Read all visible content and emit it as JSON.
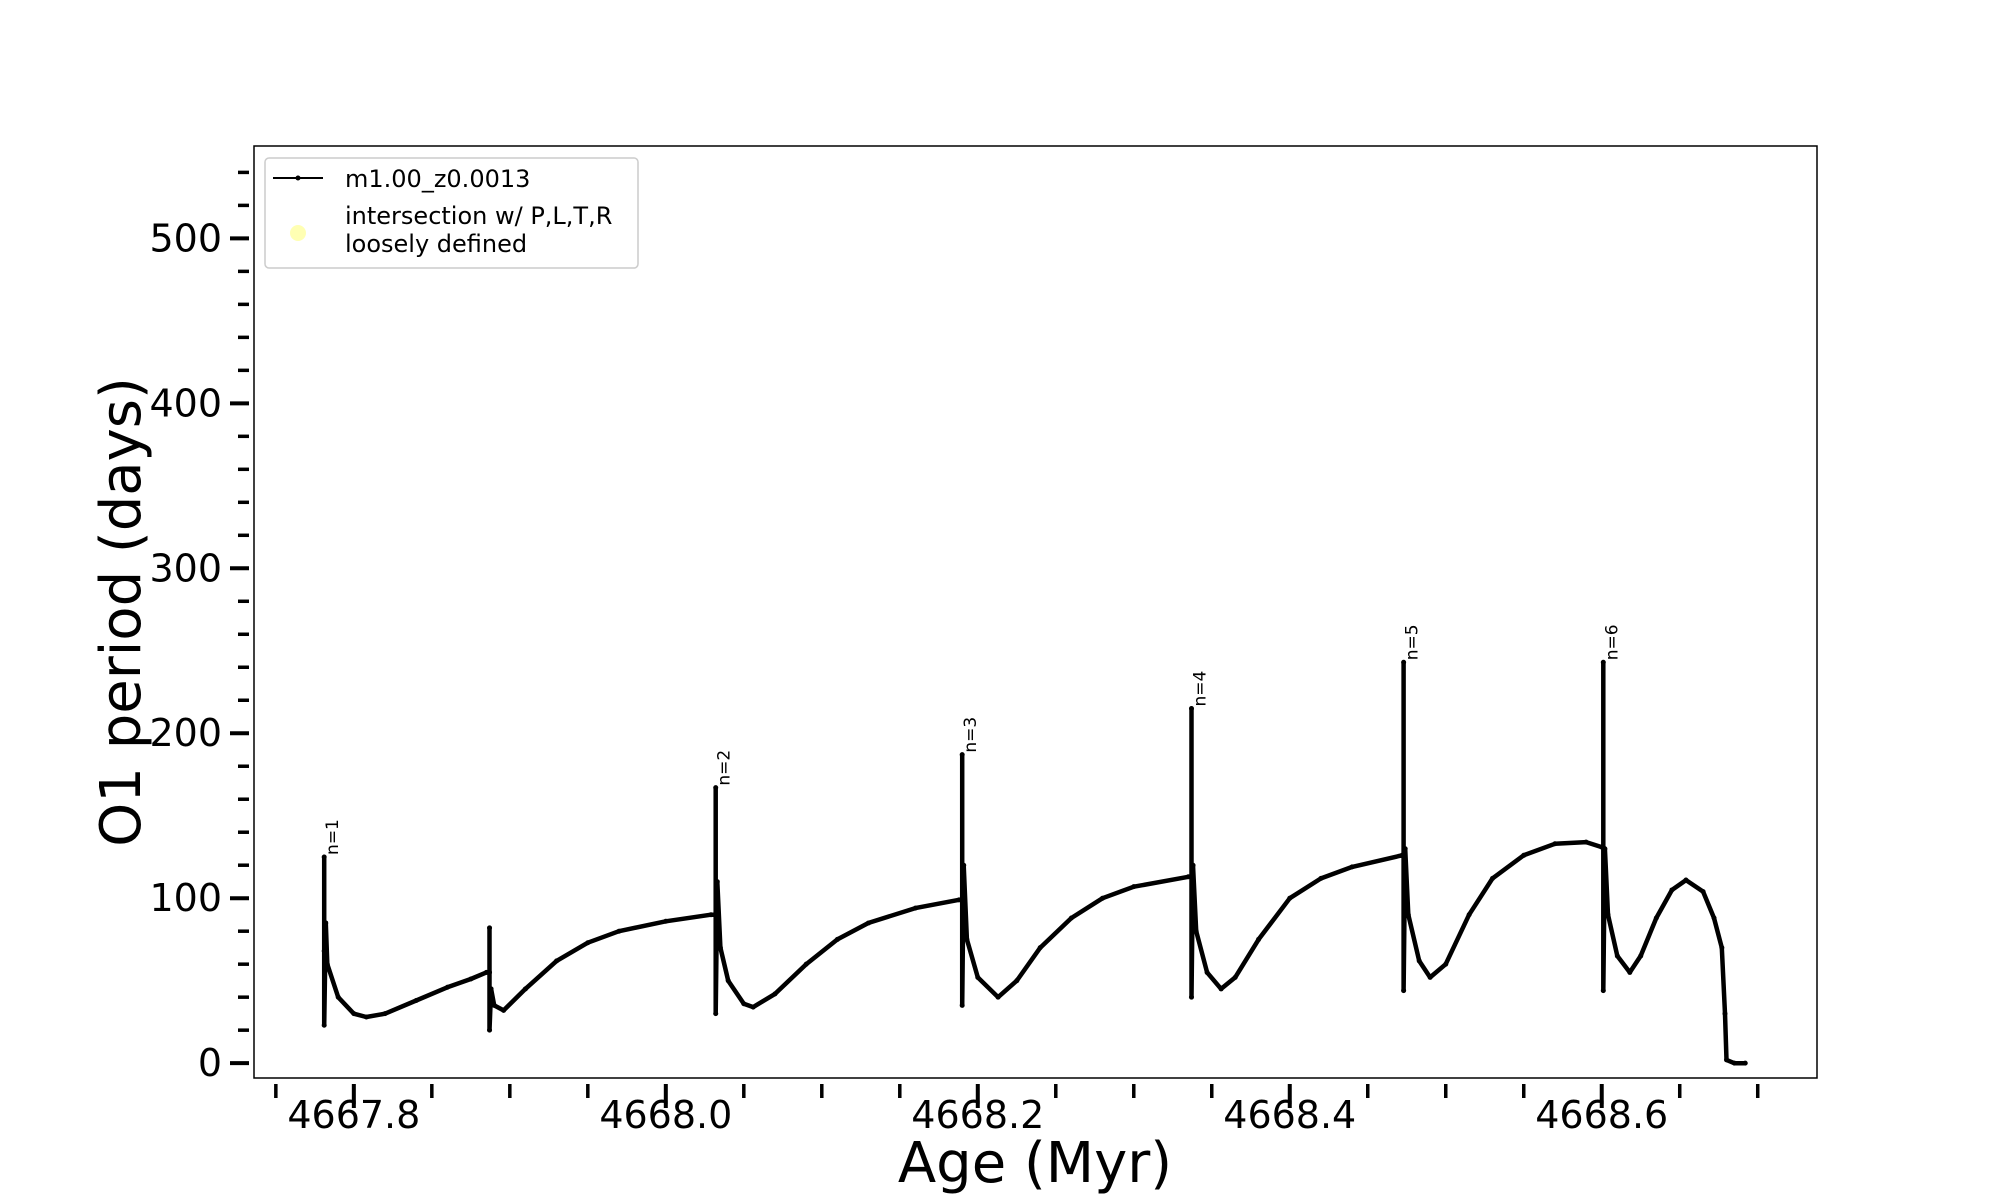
{
  "chart_data": {
    "type": "line",
    "xlabel": "Age (Myr)",
    "ylabel": "O1 period (days)",
    "xlim": [
      4667.736,
      4668.738
    ],
    "ylim": [
      -9,
      556
    ],
    "xticks": [
      4667.8,
      4668.0,
      4668.2,
      4668.4,
      4668.6
    ],
    "xtick_labels": [
      "4667.8",
      "4668.0",
      "4668.2",
      "4668.4",
      "4668.6"
    ],
    "yticks": [
      0,
      100,
      200,
      300,
      400,
      500
    ],
    "ytick_labels": [
      "0",
      "100",
      "200",
      "300",
      "400",
      "500"
    ],
    "grid": false,
    "legend_placement": "top-left",
    "legend": [
      {
        "label": "m1.00_z0.0013",
        "marker": "line-dot",
        "color": "#000000"
      },
      {
        "label": "intersection w/ P,L,T,R\nloosely defined",
        "marker": "circle",
        "color": "#ffffb3"
      }
    ],
    "series": [
      {
        "name": "m1.00_z0.0013",
        "color": "#000000",
        "points": [
          [
            4667.781,
            68
          ],
          [
            4667.781,
            125
          ],
          [
            4667.781,
            23
          ],
          [
            4667.782,
            85
          ],
          [
            4667.783,
            60
          ],
          [
            4667.79,
            40
          ],
          [
            4667.8,
            30
          ],
          [
            4667.808,
            28
          ],
          [
            4667.82,
            30
          ],
          [
            4667.84,
            38
          ],
          [
            4667.86,
            46
          ],
          [
            4667.875,
            51
          ],
          [
            4667.885,
            55
          ],
          [
            4667.887,
            55
          ],
          [
            4667.887,
            82
          ],
          [
            4667.887,
            20
          ],
          [
            4667.888,
            45
          ],
          [
            4667.89,
            35
          ],
          [
            4667.896,
            32
          ],
          [
            4667.91,
            45
          ],
          [
            4667.93,
            62
          ],
          [
            4667.95,
            73
          ],
          [
            4667.97,
            80
          ],
          [
            4668.0,
            86
          ],
          [
            4668.029,
            90
          ],
          [
            4668.032,
            90
          ],
          [
            4668.032,
            167
          ],
          [
            4668.032,
            30
          ],
          [
            4668.033,
            110
          ],
          [
            4668.035,
            70
          ],
          [
            4668.04,
            50
          ],
          [
            4668.05,
            36
          ],
          [
            4668.056,
            34
          ],
          [
            4668.07,
            42
          ],
          [
            4668.09,
            60
          ],
          [
            4668.11,
            75
          ],
          [
            4668.13,
            85
          ],
          [
            4668.16,
            94
          ],
          [
            4668.188,
            99
          ],
          [
            4668.19,
            99
          ],
          [
            4668.19,
            187
          ],
          [
            4668.19,
            35
          ],
          [
            4668.191,
            120
          ],
          [
            4668.193,
            75
          ],
          [
            4668.2,
            52
          ],
          [
            4668.213,
            40
          ],
          [
            4668.225,
            50
          ],
          [
            4668.24,
            70
          ],
          [
            4668.26,
            88
          ],
          [
            4668.28,
            100
          ],
          [
            4668.3,
            107
          ],
          [
            4668.335,
            113
          ],
          [
            4668.337,
            113
          ],
          [
            4668.337,
            215
          ],
          [
            4668.337,
            40
          ],
          [
            4668.338,
            120
          ],
          [
            4668.34,
            80
          ],
          [
            4668.347,
            55
          ],
          [
            4668.356,
            45
          ],
          [
            4668.365,
            52
          ],
          [
            4668.38,
            75
          ],
          [
            4668.4,
            100
          ],
          [
            4668.42,
            112
          ],
          [
            4668.44,
            119
          ],
          [
            4668.472,
            126
          ],
          [
            4668.473,
            126
          ],
          [
            4668.473,
            243
          ],
          [
            4668.473,
            44
          ],
          [
            4668.474,
            130
          ],
          [
            4668.476,
            90
          ],
          [
            4668.483,
            62
          ],
          [
            4668.49,
            52
          ],
          [
            4668.5,
            60
          ],
          [
            4668.515,
            90
          ],
          [
            4668.53,
            112
          ],
          [
            4668.55,
            126
          ],
          [
            4668.57,
            133
          ],
          [
            4668.59,
            134
          ],
          [
            4668.6,
            131
          ],
          [
            4668.601,
            131
          ],
          [
            4668.601,
            243
          ],
          [
            4668.601,
            44
          ],
          [
            4668.602,
            130
          ],
          [
            4668.604,
            90
          ],
          [
            4668.61,
            65
          ],
          [
            4668.618,
            55
          ],
          [
            4668.625,
            65
          ],
          [
            4668.635,
            88
          ],
          [
            4668.645,
            105
          ],
          [
            4668.654,
            111
          ],
          [
            4668.665,
            104
          ],
          [
            4668.672,
            88
          ],
          [
            4668.677,
            70
          ],
          [
            4668.679,
            30
          ],
          [
            4668.68,
            2
          ],
          [
            4668.685,
            0
          ],
          [
            4668.692,
            0
          ]
        ]
      }
    ],
    "annotations": [
      {
        "text": "n=1",
        "x": 4667.781,
        "y": 125
      },
      {
        "text": "n=2",
        "x": 4668.032,
        "y": 167
      },
      {
        "text": "n=3",
        "x": 4668.19,
        "y": 187
      },
      {
        "text": "n=4",
        "x": 4668.337,
        "y": 215
      },
      {
        "text": "n=5",
        "x": 4668.473,
        "y": 243
      },
      {
        "text": "n=6",
        "x": 4668.601,
        "y": 243
      }
    ]
  }
}
